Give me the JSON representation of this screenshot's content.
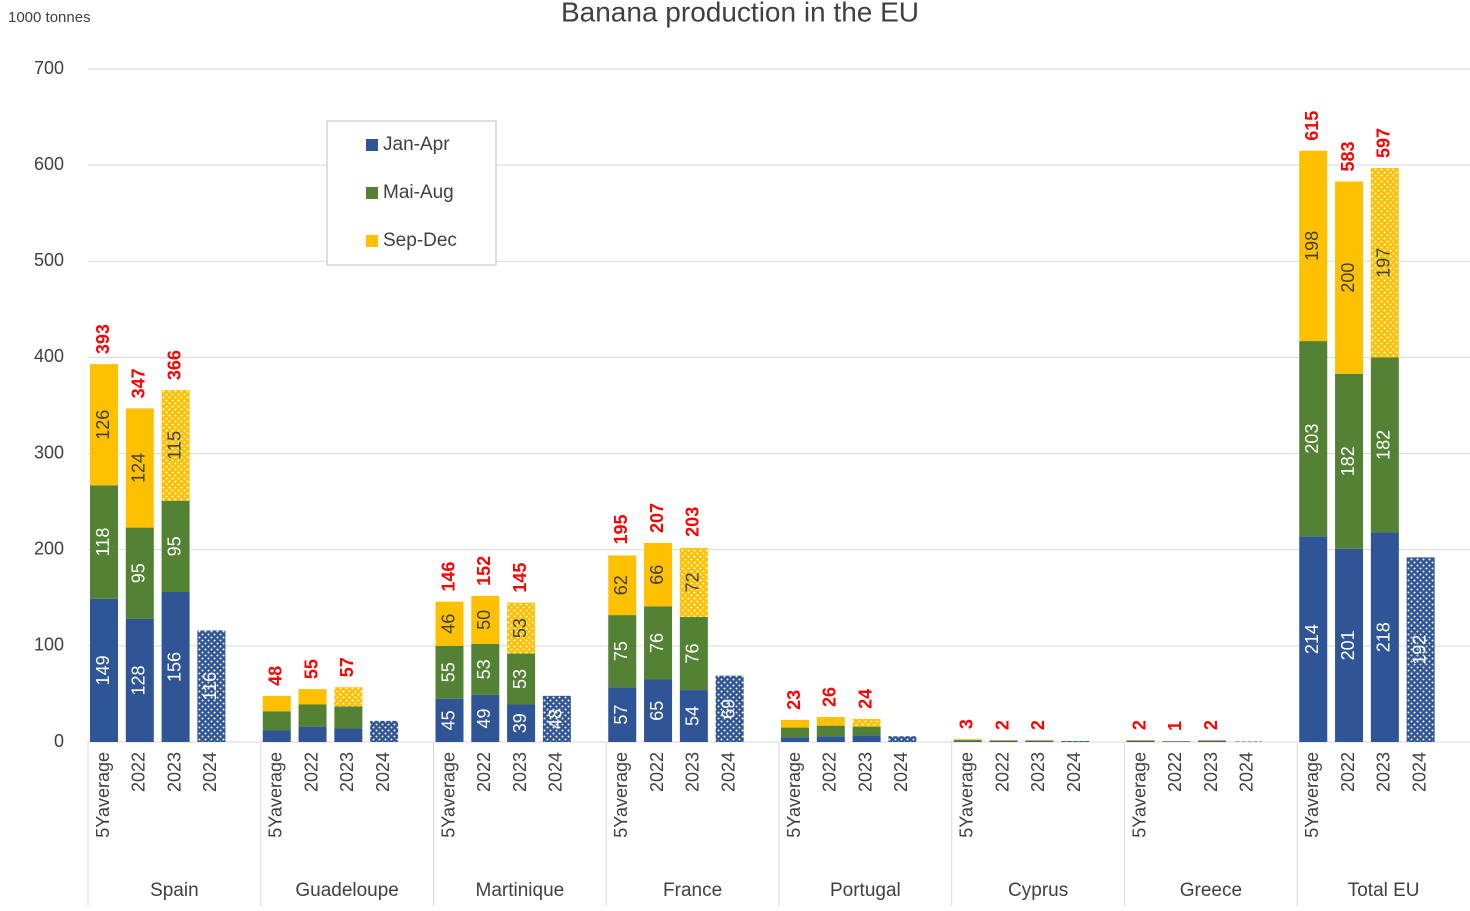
{
  "chart_data": {
    "type": "stacked_bar",
    "title": "Banana production in the EU",
    "y_unit": "1000 tonnes",
    "ylim": [
      0,
      700
    ],
    "yticks": [
      0,
      100,
      200,
      300,
      400,
      500,
      600,
      700
    ],
    "grid": true,
    "legend": "upper left",
    "groups": [
      {
        "name": "Spain",
        "segment_labels": true,
        "categories": [
          "5Yaverage",
          "2022",
          "2023",
          "2024"
        ]
      },
      {
        "name": "Guadeloupe",
        "segment_labels": false,
        "categories": [
          "5Yaverage",
          "2022",
          "2023",
          "2024"
        ]
      },
      {
        "name": "Martinique",
        "segment_labels": true,
        "categories": [
          "5Yaverage",
          "2022",
          "2023",
          "2024"
        ]
      },
      {
        "name": "France",
        "segment_labels": true,
        "categories": [
          "5Yaverage",
          "2022",
          "2023",
          "2024"
        ]
      },
      {
        "name": "Portugal",
        "segment_labels": false,
        "categories": [
          "5Yaverage",
          "2022",
          "2023",
          "2024"
        ]
      },
      {
        "name": "Cyprus",
        "segment_labels": false,
        "categories": [
          "5Yaverage",
          "2022",
          "2023",
          "2024"
        ]
      },
      {
        "name": "Greece",
        "segment_labels": false,
        "categories": [
          "5Yaverage",
          "2022",
          "2023",
          "2024"
        ]
      },
      {
        "name": "Total EU",
        "segment_labels": true,
        "categories": [
          "5Yaverage",
          "2022",
          "2023",
          "2024"
        ]
      }
    ],
    "series": [
      {
        "name": "Jan-Apr",
        "color": "#2f5597",
        "dotted": [
          "2024"
        ],
        "values": [
          149,
          128,
          156,
          116,
          12,
          16,
          14,
          22,
          45,
          49,
          39,
          48,
          57,
          65,
          54,
          69,
          5,
          6,
          7,
          6,
          1,
          1,
          1,
          1,
          1,
          0.5,
          1,
          0.5,
          214,
          201,
          218,
          192
        ]
      },
      {
        "name": "Mai-Aug",
        "color": "#548235",
        "dotted": [],
        "values": [
          118,
          95,
          95,
          null,
          20,
          23,
          23,
          null,
          55,
          53,
          53,
          null,
          75,
          76,
          76,
          null,
          10,
          11,
          9,
          null,
          1,
          0.5,
          0.5,
          null,
          0.5,
          0.3,
          0.5,
          null,
          203,
          182,
          182,
          null
        ]
      },
      {
        "name": "Sep-Dec",
        "color": "#ffc000",
        "dotted": [
          "2023"
        ],
        "values": [
          126,
          124,
          115,
          null,
          16,
          16,
          20,
          null,
          46,
          50,
          53,
          null,
          62,
          66,
          72,
          null,
          8,
          9,
          8,
          null,
          1,
          0.5,
          0.5,
          null,
          0.5,
          0.2,
          0.5,
          null,
          198,
          200,
          197,
          null
        ]
      }
    ],
    "totals": [
      393,
      347,
      366,
      null,
      48,
      55,
      57,
      null,
      146,
      152,
      145,
      null,
      195,
      207,
      203,
      null,
      23,
      26,
      24,
      null,
      3,
      2,
      2,
      null,
      2,
      1,
      2,
      null,
      615,
      583,
      597,
      null
    ],
    "totals_color": "#ff0000"
  }
}
